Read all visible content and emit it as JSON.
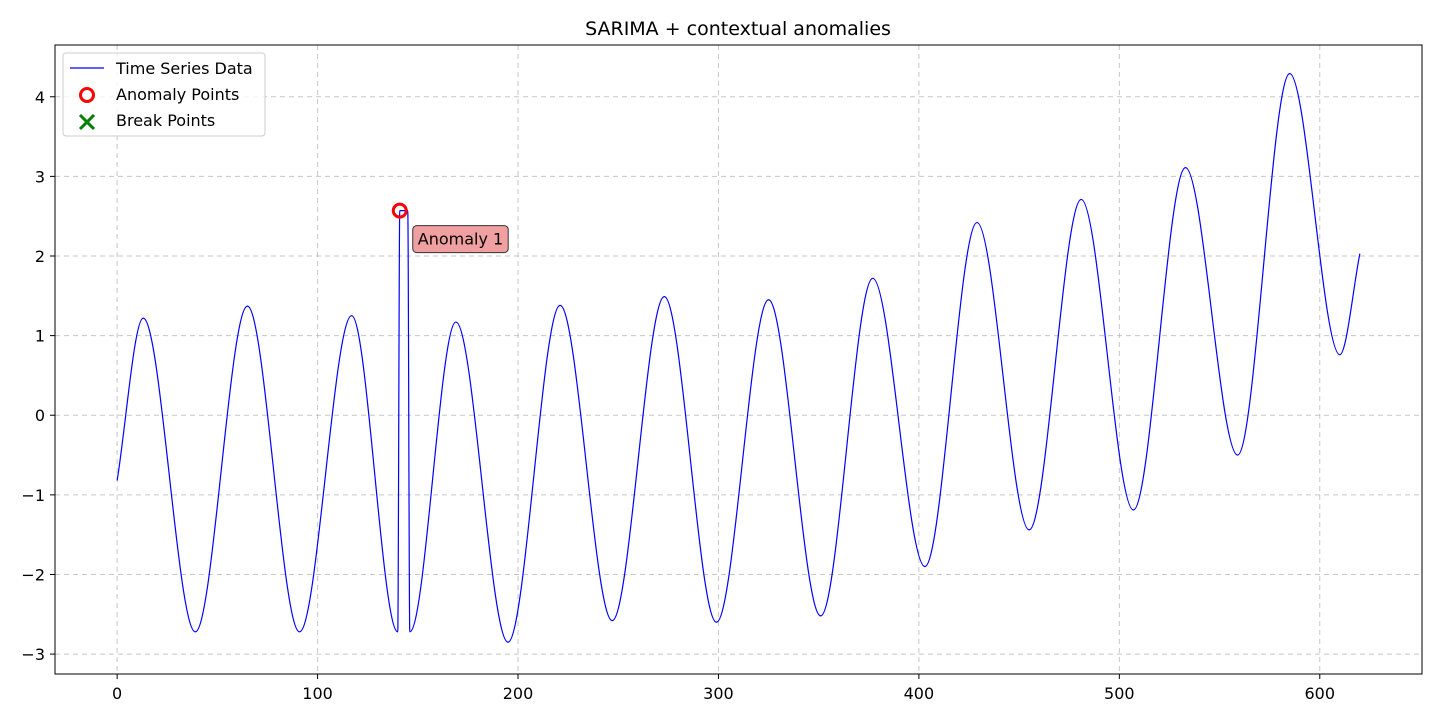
{
  "chart_data": {
    "type": "line",
    "title": "SARIMA + contextual anomalies",
    "xlabel": "",
    "ylabel": "",
    "xlim": [
      -31,
      651
    ],
    "ylim": [
      -3.25,
      4.65
    ],
    "x_ticks": [
      0,
      100,
      200,
      300,
      400,
      500,
      600
    ],
    "x_tick_labels": [
      "0",
      "100",
      "200",
      "300",
      "400",
      "500",
      "600"
    ],
    "y_ticks": [
      -3,
      -2,
      -1,
      0,
      1,
      2,
      3,
      4
    ],
    "y_tick_labels": [
      "−3",
      "−2",
      "−1",
      "0",
      "1",
      "2",
      "3",
      "4"
    ],
    "grid": true,
    "legend": {
      "placement": "top-left",
      "entries": [
        "Time Series Data",
        "Anomaly Points",
        "Break Points"
      ]
    },
    "series": [
      {
        "name": "Time Series Data",
        "color": "#0000ff",
        "x": [
          0,
          13,
          39,
          65,
          91,
          117,
          140,
          141,
          145,
          146,
          169,
          195,
          221,
          247,
          273,
          299,
          325,
          351,
          377,
          403,
          429,
          455,
          481,
          507,
          533,
          559,
          585,
          610,
          620
        ],
        "y": [
          -0.82,
          1.22,
          -2.72,
          1.37,
          -2.72,
          1.25,
          -2.72,
          2.57,
          2.57,
          -2.72,
          1.17,
          -2.85,
          1.38,
          -2.58,
          1.49,
          -2.6,
          1.45,
          -2.52,
          1.72,
          -1.9,
          2.42,
          -1.44,
          2.71,
          -1.19,
          3.11,
          -0.5,
          4.29,
          0.76,
          2.03
        ]
      },
      {
        "name": "Anomaly Points",
        "color": "#ff0000",
        "x": [
          141
        ],
        "y": [
          2.57
        ]
      },
      {
        "name": "Break Points",
        "color": "#008000",
        "x": [],
        "y": []
      }
    ],
    "annotations": [
      {
        "text": "Anomaly 1",
        "x": 141,
        "y": 2.57,
        "bg_color": "#f0a0a0"
      }
    ]
  }
}
